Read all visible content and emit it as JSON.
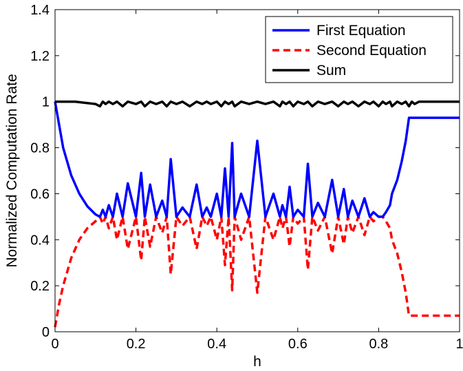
{
  "chart_data": {
    "type": "line",
    "title": "",
    "xlabel": "h",
    "ylabel": "Normalized Computation Rate",
    "xlim": [
      0,
      1
    ],
    "ylim": [
      0,
      1.4
    ],
    "grid": false,
    "legend_position": "top-right",
    "x_ticks": [
      "0",
      "0.2",
      "0.4",
      "0.6",
      "0.8",
      "1"
    ],
    "x_tick_values": [
      0,
      0.2,
      0.4,
      0.6,
      0.8,
      1
    ],
    "y_ticks": [
      "0",
      "0.2",
      "0.4",
      "0.6",
      "0.8",
      "1",
      "1.2",
      "1.4"
    ],
    "y_tick_values": [
      0,
      0.2,
      0.4,
      0.6,
      0.8,
      1,
      1.2,
      1.4
    ],
    "series": [
      {
        "name": "First Equation",
        "color": "#0000ff",
        "style": "solid",
        "x": [
          0,
          0.02,
          0.04,
          0.06,
          0.08,
          0.1,
          0.111,
          0.118,
          0.125,
          0.133,
          0.143,
          0.153,
          0.167,
          0.18,
          0.2,
          0.213,
          0.222,
          0.235,
          0.25,
          0.265,
          0.276,
          0.286,
          0.3,
          0.315,
          0.333,
          0.35,
          0.364,
          0.375,
          0.385,
          0.4,
          0.411,
          0.42,
          0.429,
          0.438,
          0.444,
          0.46,
          0.48,
          0.5,
          0.52,
          0.54,
          0.556,
          0.562,
          0.571,
          0.58,
          0.589,
          0.6,
          0.615,
          0.625,
          0.636,
          0.65,
          0.667,
          0.685,
          0.7,
          0.714,
          0.724,
          0.735,
          0.75,
          0.765,
          0.778,
          0.787,
          0.8,
          0.81,
          0.818,
          0.828,
          0.833,
          0.846,
          0.857,
          0.867,
          0.875,
          0.882,
          0.889,
          0.9,
          0.92,
          0.94,
          0.96,
          0.98,
          1.0
        ],
        "y": [
          1.0,
          0.8,
          0.68,
          0.6,
          0.545,
          0.51,
          0.5,
          0.53,
          0.5,
          0.55,
          0.5,
          0.6,
          0.5,
          0.645,
          0.5,
          0.69,
          0.5,
          0.64,
          0.5,
          0.57,
          0.5,
          0.75,
          0.5,
          0.54,
          0.5,
          0.64,
          0.5,
          0.54,
          0.5,
          0.6,
          0.5,
          0.71,
          0.5,
          0.82,
          0.5,
          0.6,
          0.5,
          0.83,
          0.5,
          0.6,
          0.5,
          0.55,
          0.5,
          0.63,
          0.5,
          0.53,
          0.5,
          0.73,
          0.5,
          0.56,
          0.5,
          0.66,
          0.5,
          0.62,
          0.5,
          0.57,
          0.5,
          0.58,
          0.5,
          0.52,
          0.5,
          0.5,
          0.52,
          0.55,
          0.6,
          0.66,
          0.74,
          0.83,
          0.93,
          0.93,
          0.93,
          0.93,
          0.93,
          0.93,
          0.93,
          0.93,
          0.93
        ]
      },
      {
        "name": "Second Equation",
        "color": "#ff0000",
        "style": "dashed",
        "x": [
          0,
          0.01,
          0.02,
          0.04,
          0.06,
          0.08,
          0.1,
          0.111,
          0.118,
          0.125,
          0.133,
          0.143,
          0.153,
          0.167,
          0.18,
          0.2,
          0.213,
          0.222,
          0.235,
          0.25,
          0.265,
          0.276,
          0.286,
          0.3,
          0.315,
          0.333,
          0.35,
          0.364,
          0.375,
          0.385,
          0.4,
          0.411,
          0.42,
          0.429,
          0.438,
          0.444,
          0.46,
          0.48,
          0.5,
          0.52,
          0.54,
          0.556,
          0.562,
          0.571,
          0.58,
          0.589,
          0.6,
          0.615,
          0.625,
          0.636,
          0.65,
          0.667,
          0.685,
          0.7,
          0.714,
          0.724,
          0.735,
          0.75,
          0.765,
          0.778,
          0.787,
          0.8,
          0.81,
          0.818,
          0.828,
          0.833,
          0.846,
          0.857,
          0.867,
          0.875,
          0.882,
          0.889,
          0.9,
          0.92,
          0.94,
          0.96,
          0.98,
          1.0
        ],
        "y": [
          0.02,
          0.12,
          0.2,
          0.32,
          0.4,
          0.45,
          0.48,
          0.5,
          0.47,
          0.5,
          0.45,
          0.5,
          0.4,
          0.5,
          0.36,
          0.5,
          0.31,
          0.5,
          0.37,
          0.5,
          0.43,
          0.5,
          0.25,
          0.5,
          0.46,
          0.5,
          0.36,
          0.5,
          0.46,
          0.5,
          0.4,
          0.5,
          0.29,
          0.5,
          0.18,
          0.5,
          0.4,
          0.5,
          0.17,
          0.5,
          0.4,
          0.5,
          0.45,
          0.5,
          0.37,
          0.5,
          0.47,
          0.5,
          0.27,
          0.5,
          0.44,
          0.5,
          0.34,
          0.5,
          0.38,
          0.5,
          0.43,
          0.5,
          0.42,
          0.5,
          0.48,
          0.5,
          0.5,
          0.48,
          0.45,
          0.4,
          0.34,
          0.26,
          0.17,
          0.07,
          0.07,
          0.07,
          0.07,
          0.07,
          0.07,
          0.07,
          0.07,
          0.07
        ]
      },
      {
        "name": "Sum",
        "color": "#000000",
        "style": "solid",
        "x": [
          0,
          0.05,
          0.1,
          0.111,
          0.118,
          0.125,
          0.133,
          0.143,
          0.153,
          0.167,
          0.18,
          0.2,
          0.213,
          0.222,
          0.235,
          0.25,
          0.265,
          0.276,
          0.286,
          0.3,
          0.315,
          0.333,
          0.35,
          0.364,
          0.375,
          0.385,
          0.4,
          0.411,
          0.42,
          0.429,
          0.438,
          0.444,
          0.46,
          0.48,
          0.5,
          0.52,
          0.54,
          0.556,
          0.562,
          0.571,
          0.58,
          0.589,
          0.6,
          0.615,
          0.625,
          0.636,
          0.65,
          0.667,
          0.685,
          0.7,
          0.714,
          0.724,
          0.735,
          0.75,
          0.765,
          0.778,
          0.787,
          0.8,
          0.81,
          0.818,
          0.828,
          0.833,
          0.846,
          0.857,
          0.867,
          0.875,
          0.882,
          0.889,
          0.9,
          0.95,
          1.0
        ],
        "y": [
          1.0,
          1.0,
          0.99,
          0.98,
          1.0,
          0.99,
          1.0,
          0.99,
          1.0,
          0.98,
          1.0,
          0.99,
          1.0,
          0.98,
          1.0,
          0.99,
          1.0,
          0.98,
          1.0,
          0.99,
          1.0,
          0.98,
          1.0,
          0.99,
          1.0,
          0.99,
          1.0,
          0.98,
          1.0,
          0.99,
          1.0,
          0.98,
          1.0,
          0.99,
          1.0,
          0.99,
          1.0,
          0.98,
          1.0,
          0.99,
          1.0,
          0.98,
          1.0,
          0.99,
          1.0,
          0.98,
          1.0,
          0.99,
          1.0,
          0.98,
          1.0,
          0.99,
          1.0,
          0.98,
          1.0,
          0.99,
          1.0,
          0.98,
          1.0,
          0.99,
          1.0,
          0.98,
          1.0,
          0.99,
          1.0,
          0.98,
          1.0,
          0.99,
          1.0,
          1.0,
          1.0
        ]
      }
    ]
  }
}
